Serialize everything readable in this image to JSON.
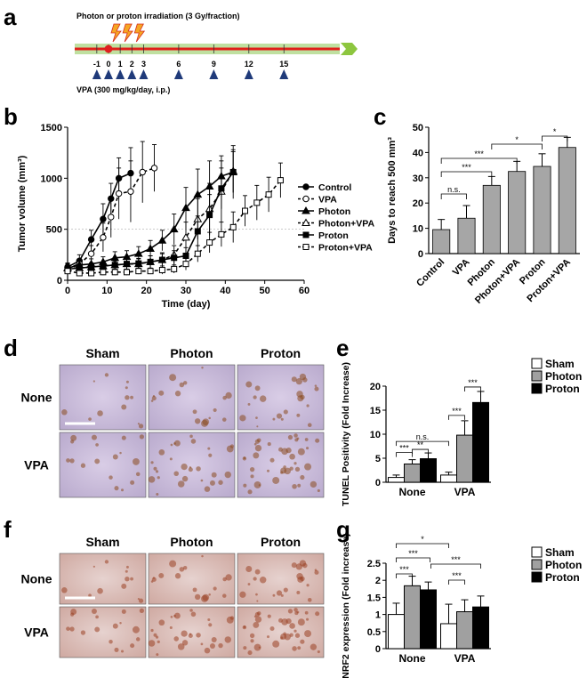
{
  "panel_labels": {
    "a": "a",
    "b": "b",
    "c": "c",
    "d": "d",
    "e": "e",
    "f": "f",
    "g": "g"
  },
  "timeline": {
    "title": "Photon or proton irradiation (3 Gy/fraction)",
    "days": [
      "-1",
      "0",
      "1",
      "2",
      "3",
      "6",
      "9",
      "12",
      "15"
    ],
    "vpa_label": "VPA (300 mg/kg/day, i.p.)",
    "colors": {
      "bar": "#bfe0a0",
      "line": "#e0201a",
      "arrow": "#1f3a7a",
      "dot": "#e02020",
      "bolt": "#f5a623",
      "chevron": "#8dc63f"
    }
  },
  "histology_d": {
    "cols": [
      "Sham",
      "Photon",
      "Proton"
    ],
    "rows": [
      "None",
      "VPA"
    ]
  },
  "histology_f": {
    "cols": [
      "Sham",
      "Photon",
      "Proton"
    ],
    "rows": [
      "None",
      "VPA"
    ]
  },
  "chart_data": [
    {
      "panel": "b",
      "type": "line",
      "xlabel": "Time (day)",
      "ylabel": "Tumor volume (mm³)",
      "xlim": [
        0,
        60
      ],
      "ylim": [
        0,
        1500
      ],
      "xticks": [
        0,
        10,
        20,
        30,
        40,
        50,
        60
      ],
      "yticks": [
        0,
        500,
        1000,
        1500
      ],
      "reference_line": 500,
      "legend_position": "right",
      "series": [
        {
          "name": "Control",
          "marker": "circle-filled",
          "dash": false,
          "x": [
            0,
            3,
            6,
            9,
            11,
            13,
            16
          ],
          "y": [
            130,
            190,
            400,
            600,
            800,
            1000,
            1050
          ],
          "err": [
            40,
            60,
            90,
            150,
            150,
            200,
            250
          ]
        },
        {
          "name": "VPA",
          "marker": "circle-open",
          "dash": true,
          "x": [
            0,
            3,
            6,
            9,
            11,
            13,
            16,
            19,
            22
          ],
          "y": [
            120,
            160,
            260,
            420,
            620,
            850,
            870,
            1060,
            1100
          ],
          "err": [
            40,
            50,
            80,
            140,
            200,
            250,
            300,
            300,
            230
          ]
        },
        {
          "name": "Photon",
          "marker": "triangle-filled",
          "dash": false,
          "x": [
            0,
            3,
            6,
            9,
            12,
            15,
            18,
            21,
            24,
            27,
            30,
            33,
            36,
            39,
            42
          ],
          "y": [
            120,
            150,
            160,
            180,
            220,
            230,
            260,
            310,
            390,
            500,
            710,
            840,
            920,
            1020,
            1060
          ],
          "err": [
            40,
            40,
            50,
            50,
            60,
            60,
            70,
            80,
            100,
            150,
            200,
            250,
            250,
            200,
            260
          ]
        },
        {
          "name": "Photon+VPA",
          "marker": "triangle-open",
          "dash": true,
          "x": [
            0,
            3,
            6,
            9,
            12,
            15,
            18,
            21,
            24,
            27,
            30,
            33,
            36,
            39,
            42
          ],
          "y": [
            120,
            120,
            130,
            140,
            150,
            160,
            160,
            180,
            200,
            250,
            420,
            600,
            700,
            870,
            1070
          ],
          "err": [
            40,
            40,
            40,
            40,
            40,
            50,
            50,
            60,
            70,
            90,
            150,
            200,
            250,
            300,
            210
          ]
        },
        {
          "name": "Proton",
          "marker": "square-filled",
          "dash": false,
          "x": [
            0,
            3,
            6,
            9,
            12,
            15,
            18,
            21,
            24,
            27,
            30,
            33,
            36,
            39,
            42
          ],
          "y": [
            110,
            120,
            130,
            140,
            150,
            160,
            165,
            180,
            200,
            220,
            240,
            480,
            640,
            900,
            1060
          ],
          "err": [
            30,
            30,
            40,
            40,
            40,
            50,
            50,
            60,
            60,
            70,
            80,
            150,
            200,
            200,
            200
          ]
        },
        {
          "name": "Proton+VPA",
          "marker": "square-open",
          "dash": true,
          "x": [
            0,
            3,
            6,
            9,
            12,
            15,
            18,
            21,
            24,
            27,
            30,
            33,
            36,
            39,
            42,
            45,
            48,
            51,
            54
          ],
          "y": [
            90,
            70,
            70,
            80,
            80,
            80,
            90,
            90,
            100,
            110,
            160,
            260,
            370,
            450,
            520,
            680,
            760,
            840,
            980
          ],
          "err": [
            30,
            30,
            30,
            30,
            30,
            30,
            30,
            30,
            40,
            40,
            60,
            80,
            100,
            120,
            150,
            150,
            170,
            170,
            170
          ]
        }
      ]
    },
    {
      "panel": "c",
      "type": "bar",
      "ylabel": "Days to reach 500 mm³",
      "ylim": [
        0,
        50
      ],
      "yticks": [
        0,
        10,
        20,
        30,
        40,
        50
      ],
      "categories": [
        "Control",
        "VPA",
        "Photon",
        "Photon+VPA",
        "Proton",
        "Proton+VPA"
      ],
      "values": [
        9.5,
        14,
        27,
        32.5,
        34.5,
        42
      ],
      "errors": [
        4,
        5,
        3.5,
        4,
        5,
        4
      ],
      "bar_color": "#a6a6a6",
      "significance": [
        {
          "from": 0,
          "to": 1,
          "label": "n.s."
        },
        {
          "from": 0,
          "to": 2,
          "label": "***"
        },
        {
          "from": 0,
          "to": 3,
          "label": "***"
        },
        {
          "from": 2,
          "to": 4,
          "label": "*"
        },
        {
          "from": 4,
          "to": 5,
          "label": "*"
        }
      ]
    },
    {
      "panel": "e",
      "type": "bar",
      "ylabel": "TUNEL Positivity (Fold Increase)",
      "ylim": [
        0,
        20
      ],
      "yticks": [
        0,
        5,
        10,
        15,
        20
      ],
      "categories": [
        "None",
        "VPA"
      ],
      "series": [
        {
          "name": "Sham",
          "color": "#ffffff",
          "values": [
            1,
            1.5
          ],
          "errors": [
            0.5,
            0.6
          ]
        },
        {
          "name": "Photon",
          "color": "#a0a0a0",
          "values": [
            3.8,
            9.8
          ],
          "errors": [
            0.9,
            3.0
          ]
        },
        {
          "name": "Proton",
          "color": "#000000",
          "values": [
            4.9,
            16.6
          ],
          "errors": [
            1.2,
            2.3
          ]
        }
      ],
      "significance": [
        {
          "group": 0,
          "from": 0,
          "to": 1,
          "label": "***"
        },
        {
          "group": 0,
          "from": 1,
          "to": 2,
          "label": "**"
        },
        {
          "group": 1,
          "from": 0,
          "to": 1,
          "label": "***"
        },
        {
          "group": 1,
          "from": 1,
          "to": 2,
          "label": "***"
        },
        {
          "cross": true,
          "label": "n.s."
        }
      ]
    },
    {
      "panel": "g",
      "type": "bar",
      "ylabel": "NRF2 expression (Fold increase)",
      "ylim": [
        0,
        2.5
      ],
      "yticks": [
        0,
        0.5,
        1.0,
        1.5,
        2.0,
        2.5
      ],
      "categories": [
        "None",
        "VPA"
      ],
      "series": [
        {
          "name": "Sham",
          "color": "#ffffff",
          "values": [
            1.0,
            0.73
          ],
          "errors": [
            0.33,
            0.57
          ]
        },
        {
          "name": "Photon",
          "color": "#a0a0a0",
          "values": [
            1.84,
            1.08
          ],
          "errors": [
            0.28,
            0.35
          ]
        },
        {
          "name": "Proton",
          "color": "#000000",
          "values": [
            1.72,
            1.22
          ],
          "errors": [
            0.23,
            0.32
          ]
        }
      ],
      "significance": [
        "*",
        "***",
        "***",
        "***",
        "***"
      ]
    }
  ]
}
